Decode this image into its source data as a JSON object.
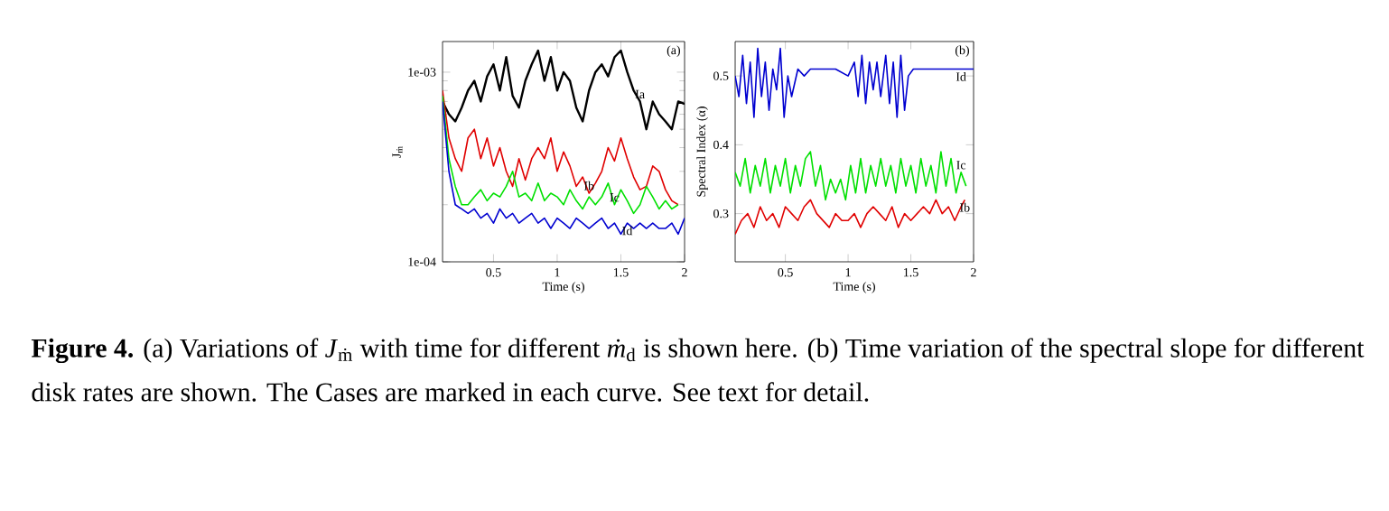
{
  "chart_data": [
    {
      "type": "line",
      "xlabel": "Time (s)",
      "ylabel": "J$_{ṁ}$",
      "log": "y",
      "xlim": [
        0.1,
        2
      ],
      "ylim": [
        0.0001,
        0.00145
      ],
      "xticks": [
        0.5,
        1,
        1.5,
        2
      ],
      "yticks": [
        {
          "value": 0.0001,
          "label": "1e-04"
        },
        {
          "value": 0.001,
          "label": "1e-03"
        }
      ],
      "annotations": [
        "(a)",
        "**Figure 4.** (a) Variations of *J*$_{ṁ}$ with time for different *ṁ*$_{d}$ is shown here. (b) Time variation of the spectral slope for different disk rates are shown. The Cases are marked in each curve. See text for detail."
      ],
      "series": [
        {
          "name": "Ia",
          "color": "#000000",
          "x": [
            0.1,
            0.15,
            0.2,
            0.25,
            0.3,
            0.35,
            0.4,
            0.45,
            0.5,
            0.55,
            0.6,
            0.65,
            0.7,
            0.75,
            0.8,
            0.85,
            0.9,
            0.95,
            1.0,
            1.05,
            1.1,
            1.15,
            1.2,
            1.25,
            1.3,
            1.35,
            1.4,
            1.45,
            1.5,
            1.55,
            1.6,
            1.65,
            1.7,
            1.75,
            1.8,
            1.85,
            1.9,
            1.95,
            2.0
          ],
          "values": [
            0.0007,
            0.0006,
            0.00055,
            0.00065,
            0.0008,
            0.0009,
            0.0007,
            0.00095,
            0.0011,
            0.0008,
            0.0012,
            0.00075,
            0.00065,
            0.0009,
            0.0011,
            0.0013,
            0.0009,
            0.0012,
            0.0008,
            0.001,
            0.0009,
            0.00065,
            0.00055,
            0.0008,
            0.001,
            0.0011,
            0.00095,
            0.0012,
            0.0013,
            0.001,
            0.0008,
            0.0007,
            0.0005,
            0.0007,
            0.0006,
            0.00055,
            0.0005,
            0.0007,
            0.00068
          ]
        },
        {
          "name": "Ib",
          "color": "#e00000",
          "x": [
            0.1,
            0.15,
            0.2,
            0.25,
            0.3,
            0.35,
            0.4,
            0.45,
            0.5,
            0.55,
            0.6,
            0.65,
            0.7,
            0.75,
            0.8,
            0.85,
            0.9,
            0.95,
            1.0,
            1.05,
            1.1,
            1.15,
            1.2,
            1.25,
            1.3,
            1.35,
            1.4,
            1.45,
            1.5,
            1.55,
            1.6,
            1.65,
            1.7,
            1.75,
            1.8,
            1.85,
            1.9,
            1.95
          ],
          "values": [
            0.0008,
            0.00045,
            0.00035,
            0.0003,
            0.00045,
            0.0005,
            0.00035,
            0.00045,
            0.00032,
            0.0004,
            0.0003,
            0.00025,
            0.00035,
            0.00027,
            0.00035,
            0.0004,
            0.00035,
            0.00045,
            0.0003,
            0.00038,
            0.00032,
            0.00025,
            0.00028,
            0.00023,
            0.00026,
            0.0003,
            0.0004,
            0.00034,
            0.00045,
            0.00035,
            0.00028,
            0.00024,
            0.00025,
            0.00032,
            0.0003,
            0.00024,
            0.00021,
            0.0002
          ]
        },
        {
          "name": "Ic",
          "color": "#00e000",
          "x": [
            0.1,
            0.15,
            0.2,
            0.25,
            0.3,
            0.35,
            0.4,
            0.45,
            0.5,
            0.55,
            0.6,
            0.65,
            0.7,
            0.75,
            0.8,
            0.85,
            0.9,
            0.95,
            1.0,
            1.05,
            1.1,
            1.15,
            1.2,
            1.25,
            1.3,
            1.35,
            1.4,
            1.45,
            1.5,
            1.55,
            1.6,
            1.65,
            1.7,
            1.75,
            1.8,
            1.85,
            1.9,
            1.95
          ],
          "values": [
            0.00075,
            0.00035,
            0.00025,
            0.0002,
            0.0002,
            0.00022,
            0.00024,
            0.00021,
            0.00023,
            0.00022,
            0.00025,
            0.0003,
            0.00022,
            0.00023,
            0.00021,
            0.00026,
            0.00021,
            0.00023,
            0.00022,
            0.0002,
            0.00024,
            0.00021,
            0.00019,
            0.00022,
            0.0002,
            0.00022,
            0.00026,
            0.0002,
            0.00024,
            0.00021,
            0.00018,
            0.0002,
            0.00025,
            0.00022,
            0.00019,
            0.00021,
            0.00019,
            0.0002
          ]
        },
        {
          "name": "Id",
          "color": "#0000d0",
          "x": [
            0.1,
            0.15,
            0.2,
            0.25,
            0.3,
            0.35,
            0.4,
            0.45,
            0.5,
            0.55,
            0.6,
            0.65,
            0.7,
            0.75,
            0.8,
            0.85,
            0.9,
            0.95,
            1.0,
            1.05,
            1.1,
            1.15,
            1.2,
            1.25,
            1.3,
            1.35,
            1.4,
            1.45,
            1.5,
            1.55,
            1.6,
            1.65,
            1.7,
            1.75,
            1.8,
            1.85,
            1.9,
            1.95,
            2.0
          ],
          "values": [
            0.0007,
            0.0003,
            0.0002,
            0.00019,
            0.00018,
            0.00019,
            0.00017,
            0.00018,
            0.00016,
            0.00019,
            0.00017,
            0.00018,
            0.00016,
            0.00017,
            0.00018,
            0.00016,
            0.00017,
            0.00015,
            0.00017,
            0.00016,
            0.00015,
            0.00017,
            0.00016,
            0.00015,
            0.00016,
            0.00017,
            0.00015,
            0.00016,
            0.00014,
            0.00016,
            0.00015,
            0.00016,
            0.00015,
            0.00016,
            0.00015,
            0.00015,
            0.00016,
            0.00014,
            0.00017
          ]
        }
      ]
    },
    {
      "type": "line",
      "xlabel": "Time (s)",
      "ylabel": "Spectral Index (α)",
      "xlim": [
        0.1,
        2
      ],
      "ylim": [
        0.23,
        0.55
      ],
      "xticks": [
        0.5,
        1,
        1.5,
        2
      ],
      "yticks": [
        0.3,
        0.4,
        0.5
      ],
      "annotations": [
        "(b)"
      ],
      "series": [
        {
          "name": "Id",
          "color": "#0000d0",
          "x": [
            0.1,
            0.13,
            0.16,
            0.19,
            0.22,
            0.25,
            0.28,
            0.31,
            0.34,
            0.37,
            0.4,
            0.43,
            0.46,
            0.49,
            0.52,
            0.55,
            0.6,
            0.65,
            0.7,
            0.8,
            0.9,
            1.0,
            1.05,
            1.08,
            1.11,
            1.14,
            1.17,
            1.2,
            1.23,
            1.26,
            1.3,
            1.33,
            1.36,
            1.39,
            1.42,
            1.45,
            1.48,
            1.52,
            1.6,
            1.7,
            1.8,
            1.9,
            2.0
          ],
          "values": [
            0.5,
            0.47,
            0.53,
            0.46,
            0.52,
            0.44,
            0.54,
            0.47,
            0.52,
            0.45,
            0.51,
            0.48,
            0.54,
            0.44,
            0.5,
            0.47,
            0.51,
            0.5,
            0.51,
            0.51,
            0.51,
            0.5,
            0.52,
            0.47,
            0.53,
            0.46,
            0.52,
            0.48,
            0.52,
            0.47,
            0.53,
            0.46,
            0.52,
            0.44,
            0.53,
            0.45,
            0.5,
            0.51,
            0.51,
            0.51,
            0.51,
            0.51,
            0.51
          ]
        },
        {
          "name": "Ic",
          "color": "#00e000",
          "x": [
            0.1,
            0.14,
            0.18,
            0.22,
            0.26,
            0.3,
            0.34,
            0.38,
            0.42,
            0.46,
            0.5,
            0.54,
            0.58,
            0.62,
            0.66,
            0.7,
            0.74,
            0.78,
            0.82,
            0.86,
            0.9,
            0.94,
            0.98,
            1.02,
            1.06,
            1.1,
            1.14,
            1.18,
            1.22,
            1.26,
            1.3,
            1.34,
            1.38,
            1.42,
            1.46,
            1.5,
            1.54,
            1.58,
            1.62,
            1.66,
            1.7,
            1.74,
            1.78,
            1.82,
            1.86,
            1.9,
            1.94
          ],
          "values": [
            0.36,
            0.34,
            0.38,
            0.33,
            0.37,
            0.34,
            0.38,
            0.33,
            0.37,
            0.34,
            0.38,
            0.33,
            0.37,
            0.34,
            0.38,
            0.39,
            0.34,
            0.37,
            0.32,
            0.35,
            0.33,
            0.35,
            0.32,
            0.37,
            0.33,
            0.38,
            0.33,
            0.37,
            0.34,
            0.38,
            0.34,
            0.37,
            0.33,
            0.38,
            0.34,
            0.37,
            0.33,
            0.38,
            0.34,
            0.37,
            0.33,
            0.39,
            0.34,
            0.38,
            0.33,
            0.36,
            0.34
          ]
        },
        {
          "name": "Ib",
          "color": "#e00000",
          "x": [
            0.1,
            0.15,
            0.2,
            0.25,
            0.3,
            0.35,
            0.4,
            0.45,
            0.5,
            0.55,
            0.6,
            0.65,
            0.7,
            0.75,
            0.8,
            0.85,
            0.9,
            0.95,
            1.0,
            1.05,
            1.1,
            1.15,
            1.2,
            1.25,
            1.3,
            1.35,
            1.4,
            1.45,
            1.5,
            1.55,
            1.6,
            1.65,
            1.7,
            1.75,
            1.8,
            1.85,
            1.9,
            1.93
          ],
          "values": [
            0.27,
            0.29,
            0.3,
            0.28,
            0.31,
            0.29,
            0.3,
            0.28,
            0.31,
            0.3,
            0.29,
            0.31,
            0.32,
            0.3,
            0.29,
            0.28,
            0.3,
            0.29,
            0.29,
            0.3,
            0.28,
            0.3,
            0.31,
            0.3,
            0.29,
            0.31,
            0.28,
            0.3,
            0.29,
            0.3,
            0.31,
            0.3,
            0.32,
            0.3,
            0.31,
            0.29,
            0.31,
            0.32
          ]
        }
      ]
    }
  ]
}
